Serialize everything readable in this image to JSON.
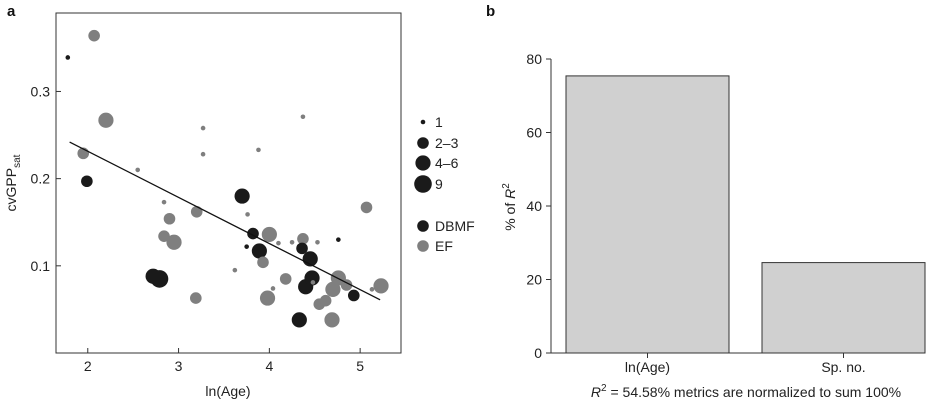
{
  "chart_data": [
    {
      "panel": "a",
      "type": "scatter",
      "xlabel": "ln(Age)",
      "ylabel": "cvGPP",
      "ylabel_sub": "sat",
      "xlim": [
        1.65,
        5.45
      ],
      "ylim": [
        0.0,
        0.39
      ],
      "xticks": [
        2,
        3,
        4,
        5
      ],
      "yticks": [
        0.1,
        0.2,
        0.3
      ],
      "size_legend": [
        {
          "label": "1",
          "n": 1
        },
        {
          "label": "2–3",
          "n": 2
        },
        {
          "label": "4–6",
          "n": 3
        },
        {
          "label": "9",
          "n": 4
        }
      ],
      "type_legend": [
        {
          "label": "DBMF",
          "color": "#1a1a1a"
        },
        {
          "label": "EF",
          "color": "#7f7f7f"
        }
      ],
      "fit_line": {
        "x": [
          1.8,
          5.22
        ],
        "y": [
          0.242,
          0.061
        ]
      },
      "points": [
        {
          "x": 1.78,
          "y": 0.339,
          "g": "DBMF",
          "n": 1
        },
        {
          "x": 2.07,
          "y": 0.364,
          "g": "EF",
          "n": 2
        },
        {
          "x": 2.2,
          "y": 0.267,
          "g": "EF",
          "n": 3
        },
        {
          "x": 1.95,
          "y": 0.229,
          "g": "EF",
          "n": 2
        },
        {
          "x": 1.99,
          "y": 0.197,
          "g": "DBMF",
          "n": 2
        },
        {
          "x": 2.55,
          "y": 0.21,
          "g": "EF",
          "n": 1
        },
        {
          "x": 2.84,
          "y": 0.173,
          "g": "EF",
          "n": 1
        },
        {
          "x": 2.9,
          "y": 0.154,
          "g": "EF",
          "n": 2
        },
        {
          "x": 2.84,
          "y": 0.134,
          "g": "EF",
          "n": 2
        },
        {
          "x": 2.95,
          "y": 0.127,
          "g": "EF",
          "n": 3
        },
        {
          "x": 2.72,
          "y": 0.088,
          "g": "DBMF",
          "n": 3
        },
        {
          "x": 2.79,
          "y": 0.085,
          "g": "DBMF",
          "n": 4
        },
        {
          "x": 3.2,
          "y": 0.162,
          "g": "EF",
          "n": 2
        },
        {
          "x": 3.27,
          "y": 0.258,
          "g": "EF",
          "n": 1
        },
        {
          "x": 3.27,
          "y": 0.228,
          "g": "EF",
          "n": 1
        },
        {
          "x": 3.19,
          "y": 0.063,
          "g": "EF",
          "n": 2
        },
        {
          "x": 3.7,
          "y": 0.18,
          "g": "DBMF",
          "n": 3
        },
        {
          "x": 3.76,
          "y": 0.159,
          "g": "EF",
          "n": 1
        },
        {
          "x": 3.62,
          "y": 0.095,
          "g": "EF",
          "n": 1
        },
        {
          "x": 3.82,
          "y": 0.137,
          "g": "DBMF",
          "n": 2
        },
        {
          "x": 3.88,
          "y": 0.233,
          "g": "EF",
          "n": 1
        },
        {
          "x": 3.75,
          "y": 0.122,
          "g": "DBMF",
          "n": 1
        },
        {
          "x": 3.89,
          "y": 0.117,
          "g": "DBMF",
          "n": 3
        },
        {
          "x": 3.93,
          "y": 0.104,
          "g": "EF",
          "n": 2
        },
        {
          "x": 4.0,
          "y": 0.136,
          "g": "EF",
          "n": 3
        },
        {
          "x": 3.98,
          "y": 0.063,
          "g": "EF",
          "n": 3
        },
        {
          "x": 4.1,
          "y": 0.126,
          "g": "EF",
          "n": 1
        },
        {
          "x": 4.04,
          "y": 0.074,
          "g": "EF",
          "n": 1
        },
        {
          "x": 4.18,
          "y": 0.085,
          "g": "EF",
          "n": 2
        },
        {
          "x": 4.25,
          "y": 0.127,
          "g": "EF",
          "n": 1
        },
        {
          "x": 4.37,
          "y": 0.271,
          "g": "EF",
          "n": 1
        },
        {
          "x": 4.37,
          "y": 0.131,
          "g": "EF",
          "n": 2
        },
        {
          "x": 4.36,
          "y": 0.12,
          "g": "DBMF",
          "n": 2
        },
        {
          "x": 4.45,
          "y": 0.108,
          "g": "DBMF",
          "n": 3
        },
        {
          "x": 4.4,
          "y": 0.076,
          "g": "DBMF",
          "n": 3
        },
        {
          "x": 4.47,
          "y": 0.086,
          "g": "DBMF",
          "n": 3
        },
        {
          "x": 4.33,
          "y": 0.038,
          "g": "DBMF",
          "n": 3
        },
        {
          "x": 4.53,
          "y": 0.127,
          "g": "EF",
          "n": 1
        },
        {
          "x": 4.55,
          "y": 0.056,
          "g": "EF",
          "n": 2
        },
        {
          "x": 4.48,
          "y": 0.081,
          "g": "EF",
          "n": 1
        },
        {
          "x": 4.62,
          "y": 0.06,
          "g": "EF",
          "n": 2
        },
        {
          "x": 4.69,
          "y": 0.038,
          "g": "EF",
          "n": 3
        },
        {
          "x": 4.7,
          "y": 0.073,
          "g": "EF",
          "n": 3
        },
        {
          "x": 4.76,
          "y": 0.086,
          "g": "EF",
          "n": 3
        },
        {
          "x": 4.76,
          "y": 0.13,
          "g": "DBMF",
          "n": 1
        },
        {
          "x": 4.85,
          "y": 0.078,
          "g": "EF",
          "n": 2
        },
        {
          "x": 4.93,
          "y": 0.066,
          "g": "DBMF",
          "n": 2
        },
        {
          "x": 5.07,
          "y": 0.167,
          "g": "EF",
          "n": 2
        },
        {
          "x": 5.13,
          "y": 0.073,
          "g": "EF",
          "n": 1
        },
        {
          "x": 5.23,
          "y": 0.077,
          "g": "EF",
          "n": 3
        }
      ]
    },
    {
      "panel": "b",
      "type": "bar",
      "categories": [
        "ln(Age)",
        "Sp. no."
      ],
      "values": [
        75.4,
        24.6
      ],
      "ylabel_prefix": "% of ",
      "ylabel_italic": "R",
      "ylabel_sup": "2",
      "ylim": [
        0,
        80
      ],
      "yticks": [
        0,
        20,
        40,
        60,
        80
      ],
      "bar_color": "#d0d0d0",
      "caption_italic": "R",
      "caption_sup": "2",
      "caption_text": " = 54.58% metrics are normalized to sum 100%"
    }
  ]
}
